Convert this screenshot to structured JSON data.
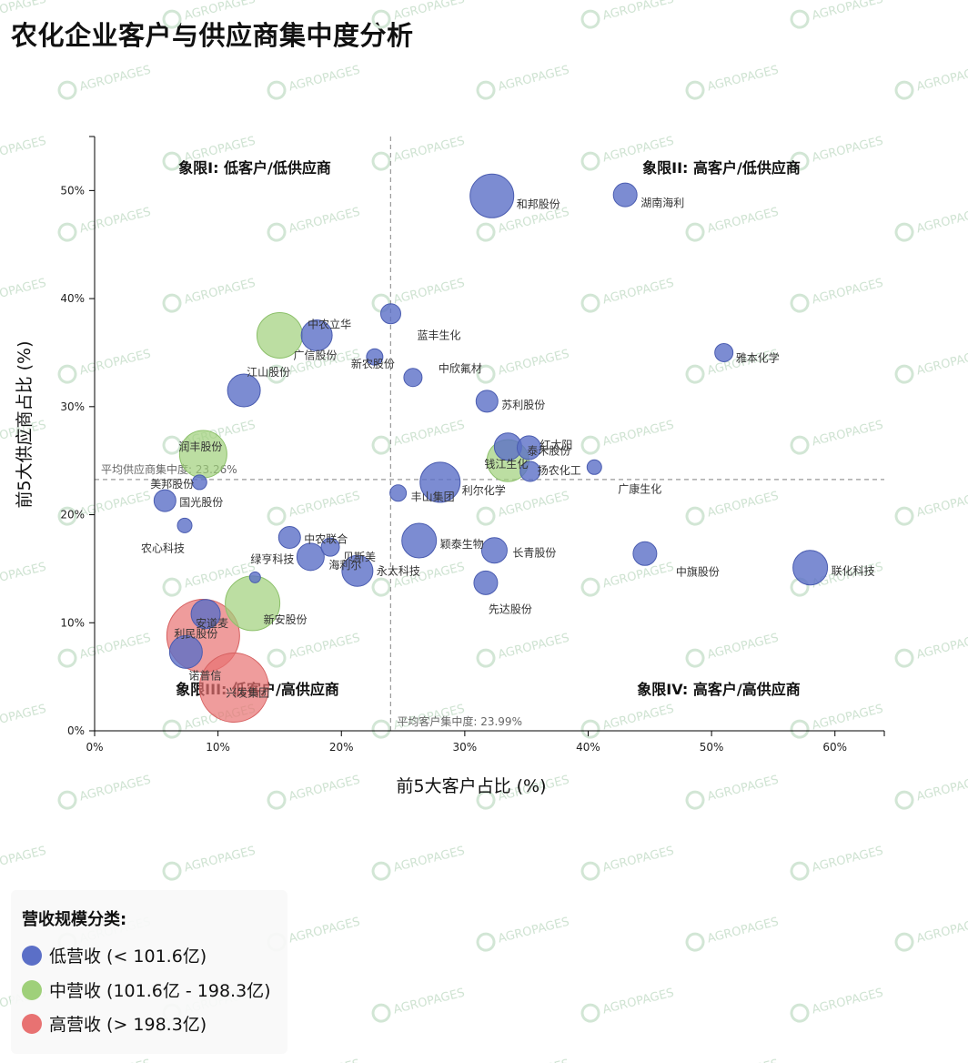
{
  "title": "农化企业客户与供应商集中度分析",
  "chart_data": {
    "type": "scatter",
    "title": "农化企业客户与供应商集中度分析",
    "xlabel": "前5大客户占比 (%)",
    "ylabel": "前5大供应商占比 (%)",
    "xlim": [
      0,
      64
    ],
    "ylim": [
      0,
      55
    ],
    "x_ticks": [
      "0%",
      "10%",
      "20%",
      "30%",
      "40%",
      "50%",
      "60%"
    ],
    "y_ticks": [
      "0%",
      "10%",
      "20%",
      "30%",
      "40%",
      "50%"
    ],
    "avg_x": 23.99,
    "avg_y": 23.26,
    "avg_x_label": "平均客户集中度: 23.99%",
    "avg_y_label": "平均供应商集中度: 23.26%",
    "quadrants": {
      "q1": "象限I: 低客户/低供应商",
      "q2": "象限II: 高客户/低供应商",
      "q3": "象限III: 低客户/高供应商",
      "q4": "象限IV: 高客户/高供应商"
    },
    "categories": {
      "low": {
        "label": "低营收 (< 101.6亿)",
        "color": "#5b6fc7"
      },
      "mid": {
        "label": "中营收 (101.6亿 - 198.3亿)",
        "color": "#9fd07a"
      },
      "high": {
        "label": "高营收 (> 198.3亿)",
        "color": "#e87272"
      }
    },
    "points": [
      {
        "name": "和邦股份",
        "x": 32.2,
        "y": 49.5,
        "cat": "low",
        "size": 24
      },
      {
        "name": "湖南海利",
        "x": 43.0,
        "y": 49.6,
        "cat": "low",
        "size": 13
      },
      {
        "name": "蓝丰生化",
        "x": 24.0,
        "y": 38.6,
        "cat": "low",
        "size": 11
      },
      {
        "name": "中农立华",
        "x": 18.0,
        "y": 36.6,
        "cat": "low",
        "size": 17
      },
      {
        "name": "广信股份",
        "x": 15.0,
        "y": 36.6,
        "cat": "mid",
        "size": 25
      },
      {
        "name": "新农股份",
        "x": 22.7,
        "y": 34.6,
        "cat": "low",
        "size": 9
      },
      {
        "name": "雅本化学",
        "x": 51.0,
        "y": 35.0,
        "cat": "low",
        "size": 10
      },
      {
        "name": "中欣氟材",
        "x": 25.8,
        "y": 32.7,
        "cat": "low",
        "size": 10
      },
      {
        "name": "江山股份",
        "x": 12.1,
        "y": 31.5,
        "cat": "low",
        "size": 18
      },
      {
        "name": "苏利股份",
        "x": 31.8,
        "y": 30.5,
        "cat": "low",
        "size": 12
      },
      {
        "name": "泰禾股份",
        "x": 33.5,
        "y": 26.3,
        "cat": "low",
        "size": 15
      },
      {
        "name": "红太阳",
        "x": 35.2,
        "y": 26.2,
        "cat": "low",
        "size": 13
      },
      {
        "name": "钱江生化",
        "x": 33.5,
        "y": 25.0,
        "cat": "mid",
        "size": 23
      },
      {
        "name": "扬农化工",
        "x": 35.3,
        "y": 24.0,
        "cat": "low",
        "size": 11
      },
      {
        "name": "广康生化",
        "x": 40.5,
        "y": 24.4,
        "cat": "low",
        "size": 8
      },
      {
        "name": "利尔化学",
        "x": 28.0,
        "y": 23.0,
        "cat": "low",
        "size": 22
      },
      {
        "name": "丰山集团",
        "x": 24.6,
        "y": 22.0,
        "cat": "low",
        "size": 9
      },
      {
        "name": "润丰股份",
        "x": 8.8,
        "y": 25.6,
        "cat": "mid",
        "size": 26
      },
      {
        "name": "美邦股份",
        "x": 8.5,
        "y": 23.0,
        "cat": "low",
        "size": 8
      },
      {
        "name": "国光股份",
        "x": 5.7,
        "y": 21.3,
        "cat": "low",
        "size": 12
      },
      {
        "name": "农心科技",
        "x": 7.3,
        "y": 19.0,
        "cat": "low",
        "size": 8
      },
      {
        "name": "中农联合",
        "x": 15.8,
        "y": 17.9,
        "cat": "low",
        "size": 12
      },
      {
        "name": "贝斯美",
        "x": 19.1,
        "y": 17.0,
        "cat": "low",
        "size": 10
      },
      {
        "name": "海利尔",
        "x": 17.5,
        "y": 16.1,
        "cat": "low",
        "size": 15
      },
      {
        "name": "颖泰生物",
        "x": 26.3,
        "y": 17.6,
        "cat": "low",
        "size": 19
      },
      {
        "name": "长青股份",
        "x": 32.4,
        "y": 16.7,
        "cat": "low",
        "size": 14
      },
      {
        "name": "永太科技",
        "x": 21.3,
        "y": 14.8,
        "cat": "low",
        "size": 17
      },
      {
        "name": "中旗股份",
        "x": 44.6,
        "y": 16.4,
        "cat": "low",
        "size": 13
      },
      {
        "name": "联化科技",
        "x": 58.0,
        "y": 15.1,
        "cat": "low",
        "size": 19
      },
      {
        "name": "先达股份",
        "x": 31.7,
        "y": 13.7,
        "cat": "low",
        "size": 13
      },
      {
        "name": "绿亨科技",
        "x": 13.0,
        "y": 14.2,
        "cat": "low",
        "size": 6
      },
      {
        "name": "新安股份",
        "x": 12.8,
        "y": 11.8,
        "cat": "mid",
        "size": 30
      },
      {
        "name": "安道麦",
        "x": 9.0,
        "y": 10.8,
        "cat": "low",
        "size": 16
      },
      {
        "name": "利民股份",
        "x": 8.8,
        "y": 8.8,
        "cat": "high",
        "size": 40
      },
      {
        "name": "诺普信",
        "x": 7.4,
        "y": 7.3,
        "cat": "low",
        "size": 18
      },
      {
        "name": "兴发集团",
        "x": 11.3,
        "y": 4.0,
        "cat": "high",
        "size": 38
      }
    ]
  },
  "legend": {
    "title": "营收规模分类:",
    "items": [
      {
        "label": "低营收 (< 101.6亿)",
        "color": "#5b6fc7"
      },
      {
        "label": "中营收 (101.6亿 - 198.3亿)",
        "color": "#9fd07a"
      },
      {
        "label": "高营收 (> 198.3亿)",
        "color": "#e87272"
      }
    ]
  },
  "watermark": "AGROPAGES"
}
